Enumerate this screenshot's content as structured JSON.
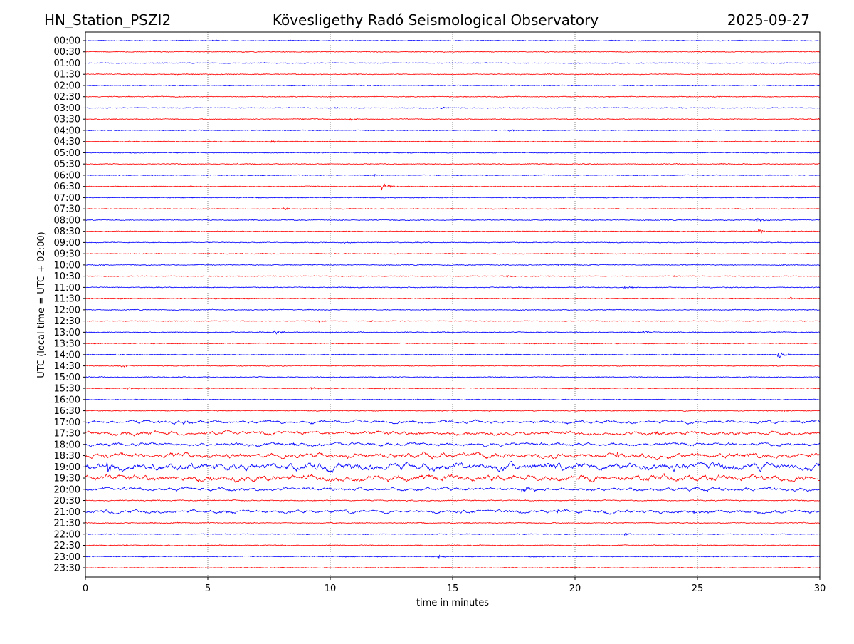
{
  "header": {
    "station": "HN_Station_PSZI2",
    "observatory": "Kövesligethy Radó Seismological Observatory",
    "date": "2025-09-27"
  },
  "chart_data": {
    "type": "line",
    "title": "Kövesligethy Radó Seismological Observatory",
    "xlabel": "time in minutes",
    "ylabel": "UTC (local time = UTC + 02:00)",
    "xlim": [
      0,
      30
    ],
    "xticks": [
      "0",
      "5",
      "10",
      "15",
      "20",
      "25",
      "30"
    ],
    "grid": "vertical dotted at every 5 minutes",
    "colors": [
      "#0000ff",
      "#ff0000"
    ],
    "rows": [
      "00:00",
      "00:30",
      "01:00",
      "01:30",
      "02:00",
      "02:30",
      "03:00",
      "03:30",
      "04:00",
      "04:30",
      "05:00",
      "05:30",
      "06:00",
      "06:30",
      "07:00",
      "07:30",
      "08:00",
      "08:30",
      "09:00",
      "09:30",
      "10:00",
      "10:30",
      "11:00",
      "11:30",
      "12:00",
      "12:30",
      "13:00",
      "13:30",
      "14:00",
      "14:30",
      "15:00",
      "15:30",
      "16:00",
      "16:30",
      "17:00",
      "17:30",
      "18:00",
      "18:30",
      "19:00",
      "19:30",
      "20:00",
      "20:30",
      "21:00",
      "21:30",
      "22:00",
      "22:30",
      "23:00",
      "23:30"
    ],
    "noise_level": [
      0.6,
      0.6,
      0.6,
      0.6,
      0.6,
      0.6,
      0.6,
      0.6,
      0.6,
      0.6,
      0.6,
      0.6,
      0.6,
      0.6,
      0.6,
      0.6,
      0.6,
      0.6,
      0.6,
      0.6,
      0.6,
      0.6,
      0.6,
      0.6,
      0.6,
      0.6,
      0.6,
      0.6,
      0.6,
      0.6,
      0.6,
      0.6,
      0.6,
      0.7,
      1.2,
      1.5,
      1.3,
      2.0,
      3.0,
      2.5,
      1.3,
      1.0,
      1.3,
      0.8,
      0.7,
      0.7,
      0.7,
      0.6
    ],
    "events": [
      [
        6,
        10.1,
        1.5
      ],
      [
        6,
        14.5,
        1.2
      ],
      [
        7,
        8.8,
        1.5
      ],
      [
        7,
        10.8,
        1.5
      ],
      [
        8,
        17.3,
        1.3
      ],
      [
        9,
        7.6,
        1.8
      ],
      [
        9,
        28.2,
        1.8
      ],
      [
        11,
        6.2,
        1.2
      ],
      [
        11,
        26,
        1
      ],
      [
        12,
        2.6,
        1.2
      ],
      [
        12,
        11.8,
        1.4
      ],
      [
        13,
        12.1,
        6
      ],
      [
        15,
        8.1,
        1.8
      ],
      [
        16,
        27.4,
        3
      ],
      [
        17,
        27.5,
        3
      ],
      [
        18,
        10.5,
        1.2
      ],
      [
        20,
        0.6,
        1.2
      ],
      [
        20,
        19.3,
        1.5
      ],
      [
        21,
        17.2,
        1.5
      ],
      [
        21,
        24,
        1.2
      ],
      [
        22,
        22,
        1.5
      ],
      [
        23,
        28.8,
        1.5
      ],
      [
        25,
        9.5,
        1.5
      ],
      [
        25,
        11.6,
        1.3
      ],
      [
        26,
        7.7,
        3
      ],
      [
        26,
        22.8,
        1.5
      ],
      [
        28,
        1.2,
        1.5
      ],
      [
        28,
        28.3,
        5
      ],
      [
        29,
        1.5,
        3
      ],
      [
        31,
        1.7,
        2
      ],
      [
        31,
        9.2,
        1.6
      ],
      [
        31,
        12.2,
        2
      ],
      [
        33,
        28.4,
        1.8
      ],
      [
        34,
        4,
        2
      ],
      [
        34,
        19.5,
        2
      ],
      [
        35,
        23.3,
        2
      ],
      [
        36,
        8.5,
        2
      ],
      [
        37,
        21.7,
        3.5
      ],
      [
        38,
        0.9,
        8
      ],
      [
        40,
        17.8,
        5
      ],
      [
        42,
        19.3,
        2.5
      ],
      [
        42,
        24.8,
        4
      ],
      [
        44,
        22,
        1.5
      ],
      [
        46,
        14.4,
        3
      ]
    ]
  }
}
